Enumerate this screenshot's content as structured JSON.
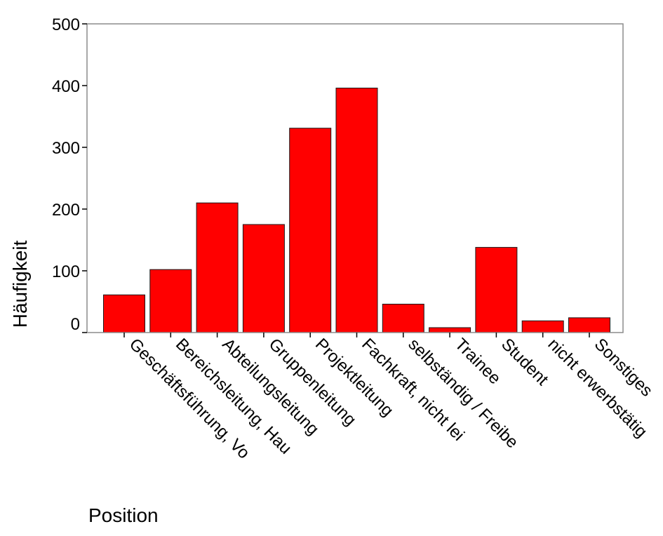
{
  "chart_data": {
    "type": "bar",
    "title": "",
    "xlabel": "Position",
    "ylabel": "Häufigkeit",
    "ylim": [
      0,
      500
    ],
    "yticks": [
      0,
      100,
      200,
      300,
      400,
      500
    ],
    "grid": false,
    "bar_color": "#ff0000",
    "categories": [
      "Geschäftsführung, Vo",
      "Bereichsleitung, Hau",
      "Abteilungsleitung",
      "Gruppenleitung",
      "Projektleitung",
      "Fachkraft, nicht lei",
      "selbständig / Freibe",
      "Trainee",
      "Student",
      "nicht erwerbstätig",
      "Sonstiges"
    ],
    "values": [
      61,
      102,
      210,
      175,
      331,
      396,
      46,
      8,
      138,
      19,
      24
    ]
  }
}
